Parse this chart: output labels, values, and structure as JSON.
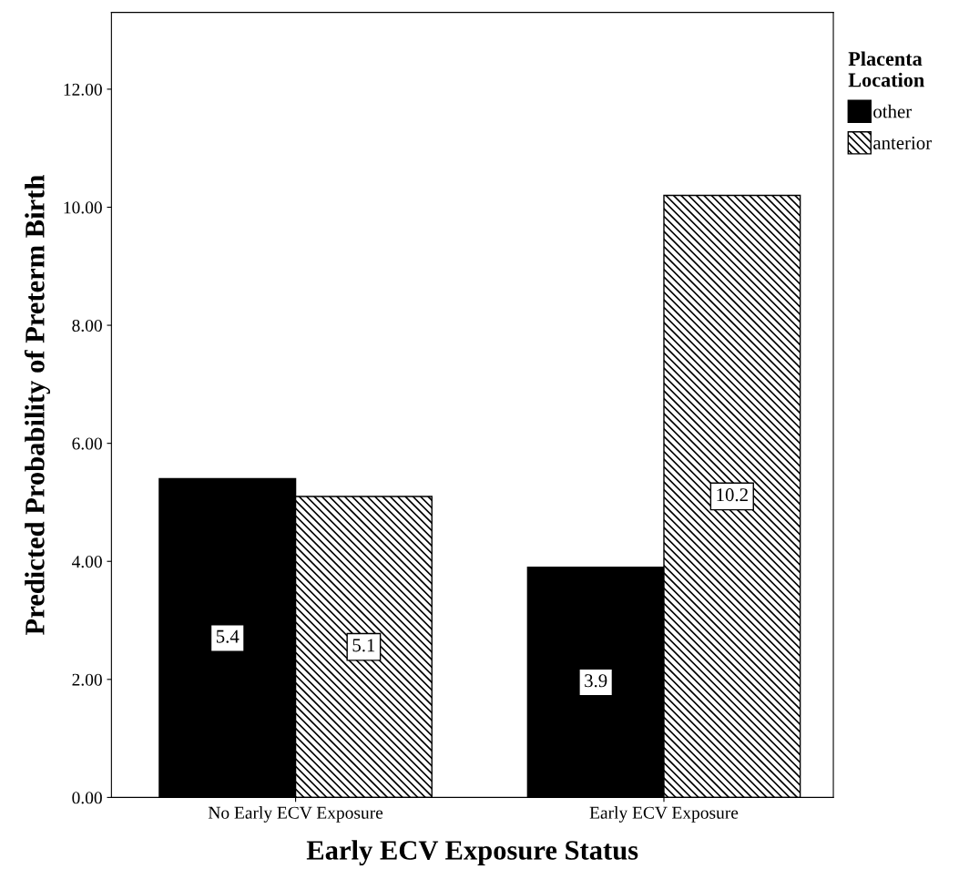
{
  "chart_data": {
    "type": "bar",
    "xlabel": "Early ECV Exposure Status",
    "ylabel": "Predicted Probability of Preterm Birth",
    "legend_title": "Placenta\nLocation",
    "categories": [
      "No Early ECV Exposure",
      "Early ECV Exposure"
    ],
    "series": [
      {
        "name": "other",
        "color": "#000000",
        "values": [
          5.4,
          3.9
        ]
      },
      {
        "name": "anterior",
        "color": "#000000",
        "values": [
          5.1,
          10.2
        ]
      }
    ],
    "ylim": [
      0,
      13.3
    ],
    "yticks": [
      {
        "value": 0,
        "label": "0.00"
      },
      {
        "value": 2,
        "label": "2.00"
      },
      {
        "value": 4,
        "label": "4.00"
      },
      {
        "value": 6,
        "label": "6.00"
      },
      {
        "value": 8,
        "label": "8.00"
      },
      {
        "value": 10,
        "label": "10.00"
      },
      {
        "value": 12,
        "label": "12.00"
      }
    ],
    "data_labels": true,
    "grid": false,
    "legend": "top right"
  }
}
